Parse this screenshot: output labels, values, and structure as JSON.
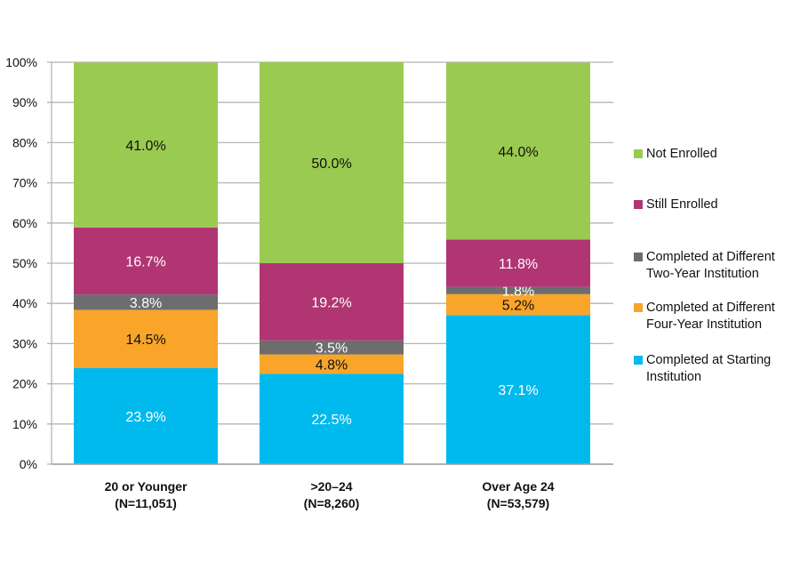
{
  "chart_data": {
    "type": "stacked-bar",
    "categories": [
      "20 or Younger",
      ">20–24",
      "Over Age 24"
    ],
    "category_sublabels": [
      "(N=11,051)",
      "(N=8,260)",
      "(N=53,579)"
    ],
    "series": [
      {
        "name": "Completed at Starting Institution",
        "color": "#00BAEE",
        "label_color": "#ffffff",
        "values": [
          23.9,
          22.5,
          37.1
        ]
      },
      {
        "name": "Completed at Different Four-Year Institution",
        "color": "#F8A52A",
        "label_color": "#111111",
        "values": [
          14.5,
          4.8,
          5.2
        ]
      },
      {
        "name": "Completed at Different Two-Year Institution",
        "color": "#6D6D6D",
        "label_color": "#ffffff",
        "values": [
          3.8,
          3.5,
          1.8
        ]
      },
      {
        "name": "Still Enrolled",
        "color": "#B03572",
        "label_color": "#ffffff",
        "values": [
          16.7,
          19.2,
          11.8
        ]
      },
      {
        "name": "Not Enrolled",
        "color": "#9ACA50",
        "label_color": "#111111",
        "values": [
          41.0,
          50.0,
          44.0
        ]
      }
    ],
    "data_labels": [
      [
        "23.9%",
        "22.5%",
        "37.1%"
      ],
      [
        "14.5%",
        "4.8%",
        "5.2%"
      ],
      [
        "3.8%",
        "3.5%",
        "1.8%"
      ],
      [
        "16.7%",
        "19.2%",
        "11.8%"
      ],
      [
        "41.0%",
        "50.0%",
        "44.0%"
      ]
    ],
    "y_ticks": [
      "0%",
      "10%",
      "20%",
      "30%",
      "40%",
      "50%",
      "60%",
      "70%",
      "80%",
      "90%",
      "100%"
    ],
    "ylim": [
      0,
      100
    ],
    "grid": true,
    "legend_position": "right",
    "legend_order": [
      {
        "line1": "Not Enrolled",
        "line2": "",
        "color": "#9ACA50"
      },
      {
        "line1": "Still Enrolled",
        "line2": "",
        "color": "#B03572"
      },
      {
        "line1": "Completed at Different",
        "line2": "Two-Year Institution",
        "color": "#6D6D6D"
      },
      {
        "line1": "Completed at Different",
        "line2": "Four-Year Institution",
        "color": "#F8A52A"
      },
      {
        "line1": "Completed at Starting",
        "line2": "Institution",
        "color": "#00BAEE"
      }
    ]
  }
}
